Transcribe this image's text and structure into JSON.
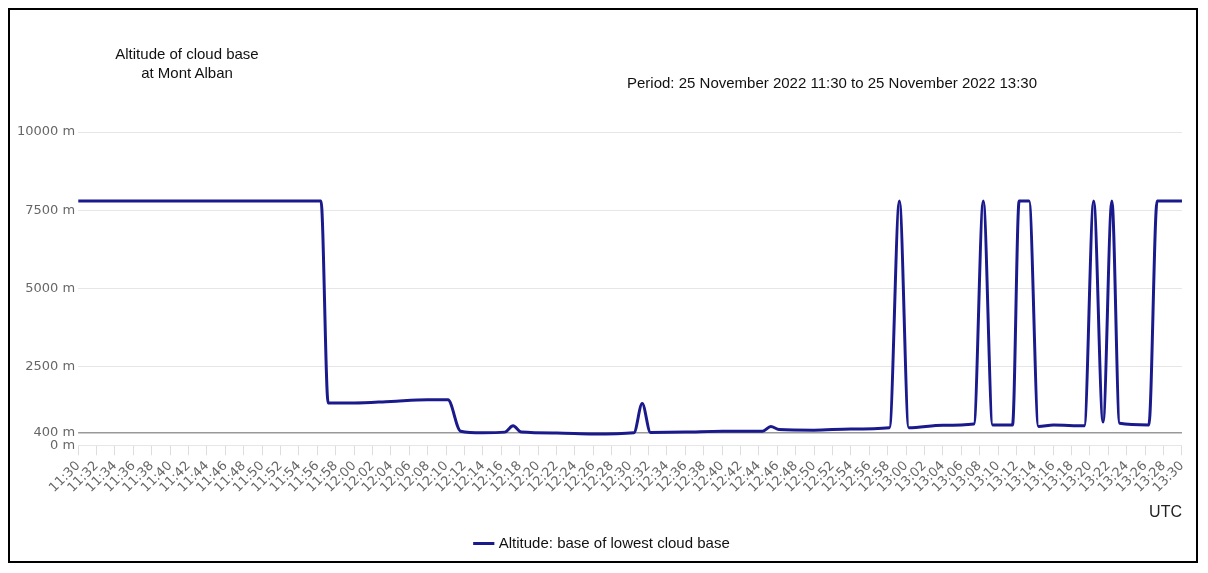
{
  "chart_data": {
    "type": "line",
    "title": "Altitude of cloud base\nat Mont Alban",
    "subtitle": "Period: 25 November 2022 11:30 to 25 November 2022 13:30",
    "xlabel": "UTC",
    "x": [
      11.5,
      11.94,
      11.953,
      12.0,
      12.067,
      12.133,
      12.17,
      12.193,
      12.233,
      12.273,
      12.288,
      12.303,
      12.367,
      12.433,
      12.507,
      12.522,
      12.537,
      12.6,
      12.667,
      12.74,
      12.755,
      12.77,
      12.833,
      12.9,
      12.97,
      12.988,
      13.005,
      13.067,
      13.123,
      13.14,
      13.157,
      13.193,
      13.205,
      13.223,
      13.24,
      13.267,
      13.323,
      13.34,
      13.357,
      13.373,
      13.387,
      13.44,
      13.455,
      13.5
    ],
    "series": [
      {
        "name": "Altitude: base of lowest cloud base",
        "color": "#1a1a8c",
        "values": [
          7800,
          7800,
          1350,
          1350,
          1400,
          1450,
          1450,
          450,
          400,
          420,
          620,
          420,
          390,
          360,
          400,
          1330,
          410,
          420,
          450,
          450,
          600,
          500,
          480,
          520,
          560,
          7800,
          560,
          640,
          680,
          7800,
          650,
          650,
          7800,
          7800,
          600,
          650,
          620,
          7800,
          740,
          7800,
          700,
          650,
          7800,
          7800
        ]
      }
    ],
    "xlim": [
      11.5,
      13.5
    ],
    "xticks": [
      {
        "value": 11.5,
        "label": "11:30"
      },
      {
        "value": 11.5333,
        "label": "11:32"
      },
      {
        "value": 11.5667,
        "label": "11:34"
      },
      {
        "value": 11.6,
        "label": "11:36"
      },
      {
        "value": 11.6333,
        "label": "11:38"
      },
      {
        "value": 11.6667,
        "label": "11:40"
      },
      {
        "value": 11.7,
        "label": "11:42"
      },
      {
        "value": 11.7333,
        "label": "11:44"
      },
      {
        "value": 11.7667,
        "label": "11:46"
      },
      {
        "value": 11.8,
        "label": "11:48"
      },
      {
        "value": 11.8333,
        "label": "11:50"
      },
      {
        "value": 11.8667,
        "label": "11:52"
      },
      {
        "value": 11.9,
        "label": "11:54"
      },
      {
        "value": 11.9333,
        "label": "11:56"
      },
      {
        "value": 11.9667,
        "label": "11:58"
      },
      {
        "value": 12.0,
        "label": "12:00"
      },
      {
        "value": 12.0333,
        "label": "12:02"
      },
      {
        "value": 12.0667,
        "label": "12:04"
      },
      {
        "value": 12.1,
        "label": "12:06"
      },
      {
        "value": 12.1333,
        "label": "12:08"
      },
      {
        "value": 12.1667,
        "label": "12:10"
      },
      {
        "value": 12.2,
        "label": "12:12"
      },
      {
        "value": 12.2333,
        "label": "12:14"
      },
      {
        "value": 12.2667,
        "label": "12:16"
      },
      {
        "value": 12.3,
        "label": "12:18"
      },
      {
        "value": 12.3333,
        "label": "12:20"
      },
      {
        "value": 12.3667,
        "label": "12:22"
      },
      {
        "value": 12.4,
        "label": "12:24"
      },
      {
        "value": 12.4333,
        "label": "12:26"
      },
      {
        "value": 12.4667,
        "label": "12:28"
      },
      {
        "value": 12.5,
        "label": "12:30"
      },
      {
        "value": 12.5333,
        "label": "12:32"
      },
      {
        "value": 12.5667,
        "label": "12:34"
      },
      {
        "value": 12.6,
        "label": "12:36"
      },
      {
        "value": 12.6333,
        "label": "12:38"
      },
      {
        "value": 12.6667,
        "label": "12:40"
      },
      {
        "value": 12.7,
        "label": "12:42"
      },
      {
        "value": 12.7333,
        "label": "12:44"
      },
      {
        "value": 12.7667,
        "label": "12:46"
      },
      {
        "value": 12.8,
        "label": "12:48"
      },
      {
        "value": 12.8333,
        "label": "12:50"
      },
      {
        "value": 12.8667,
        "label": "12:52"
      },
      {
        "value": 12.9,
        "label": "12:54"
      },
      {
        "value": 12.9333,
        "label": "12:56"
      },
      {
        "value": 12.9667,
        "label": "12:58"
      },
      {
        "value": 13.0,
        "label": "13:00"
      },
      {
        "value": 13.0333,
        "label": "13:02"
      },
      {
        "value": 13.0667,
        "label": "13:04"
      },
      {
        "value": 13.1,
        "label": "13:06"
      },
      {
        "value": 13.1333,
        "label": "13:08"
      },
      {
        "value": 13.1667,
        "label": "13:10"
      },
      {
        "value": 13.2,
        "label": "13:12"
      },
      {
        "value": 13.2333,
        "label": "13:14"
      },
      {
        "value": 13.2667,
        "label": "13:16"
      },
      {
        "value": 13.3,
        "label": "13:18"
      },
      {
        "value": 13.3333,
        "label": "13:20"
      },
      {
        "value": 13.3667,
        "label": "13:22"
      },
      {
        "value": 13.4,
        "label": "13:24"
      },
      {
        "value": 13.4333,
        "label": "13:26"
      },
      {
        "value": 13.4667,
        "label": "13:28"
      },
      {
        "value": 13.5,
        "label": "13:30"
      }
    ],
    "ylim": [
      0,
      10000
    ],
    "yticks": [
      {
        "value": 0,
        "label": "0 m"
      },
      {
        "value": 400,
        "label": "400 m"
      },
      {
        "value": 2500,
        "label": "2500 m"
      },
      {
        "value": 5000,
        "label": "5000 m"
      },
      {
        "value": 7500,
        "label": "7500 m"
      },
      {
        "value": 10000,
        "label": "10000 m"
      }
    ],
    "ref_lines": [
      {
        "axis": "y",
        "value": 400,
        "color": "#999999"
      }
    ],
    "grid": "y",
    "legend": "bottom",
    "marker": "none",
    "line_style": "solid"
  }
}
